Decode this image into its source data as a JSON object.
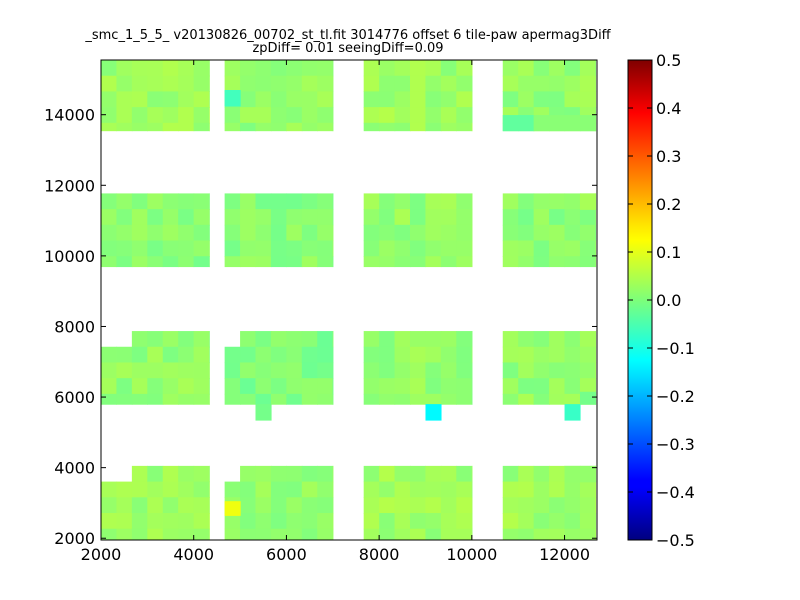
{
  "chart_data": {
    "type": "heatmap",
    "title": "_smc_1_5_5_ v20130826_00702_st_tl.fit 3014776 offset 6 tile-paw apermag3Diff",
    "subtitle": "zpDiff= 0.01 seeingDiff=0.09",
    "xlabel": "",
    "ylabel": "",
    "xlim": [
      2000,
      12700
    ],
    "ylim": [
      1950,
      15550
    ],
    "x_ticks": [
      2000,
      4000,
      6000,
      8000,
      10000,
      12000
    ],
    "y_ticks": [
      2000,
      4000,
      6000,
      8000,
      10000,
      12000,
      14000
    ],
    "colorbar": {
      "colormap": "jet",
      "range": [
        -0.5,
        0.5
      ],
      "ticks": [
        -0.5,
        -0.4,
        -0.3,
        -0.2,
        -0.1,
        0.0,
        0.1,
        0.2,
        0.3,
        0.4,
        0.5
      ]
    },
    "cell_size": [
      333,
      445
    ],
    "patches": [
      {
        "x0": 2000,
        "x1": 4333,
        "y0": 13550,
        "y1": 15550,
        "base": 0.03
      },
      {
        "x0": 4667,
        "x1": 7000,
        "y0": 13550,
        "y1": 15550,
        "base": 0.02
      },
      {
        "x0": 7667,
        "x1": 10000,
        "y0": 13550,
        "y1": 15550,
        "base": 0.03
      },
      {
        "x0": 10667,
        "x1": 12667,
        "y0": 13550,
        "y1": 15550,
        "base": 0.02
      },
      {
        "x0": 2000,
        "x1": 4333,
        "y0": 9700,
        "y1": 11770,
        "base": 0.01
      },
      {
        "x0": 4667,
        "x1": 7000,
        "y0": 9700,
        "y1": 11770,
        "base": 0.01
      },
      {
        "x0": 7667,
        "x1": 10000,
        "y0": 9700,
        "y1": 11770,
        "base": 0.02
      },
      {
        "x0": 10667,
        "x1": 12667,
        "y0": 9700,
        "y1": 11770,
        "base": 0.01
      },
      {
        "x0": 2000,
        "x1": 4333,
        "y0": 5800,
        "y1": 7870,
        "base": 0.02
      },
      {
        "x0": 4667,
        "x1": 7000,
        "y0": 5800,
        "y1": 7870,
        "base": 0.0
      },
      {
        "x0": 7667,
        "x1": 10000,
        "y0": 5800,
        "y1": 7870,
        "base": 0.02
      },
      {
        "x0": 10667,
        "x1": 12667,
        "y0": 5800,
        "y1": 7870,
        "base": 0.02
      },
      {
        "x0": 2000,
        "x1": 4333,
        "y0": 1950,
        "y1": 4050,
        "base": 0.03
      },
      {
        "x0": 4667,
        "x1": 7000,
        "y0": 1950,
        "y1": 4050,
        "base": 0.02
      },
      {
        "x0": 7667,
        "x1": 10000,
        "y0": 1950,
        "y1": 4050,
        "base": 0.03
      },
      {
        "x0": 10667,
        "x1": 12667,
        "y0": 1950,
        "y1": 4050,
        "base": 0.03
      }
    ],
    "missing_cells": [
      [
        4000,
        15550
      ],
      [
        4333,
        15550
      ],
      [
        4000,
        15100
      ],
      [
        4333,
        15100
      ],
      [
        4333,
        14650
      ],
      [
        4333,
        14200
      ],
      [
        4667,
        15100
      ],
      [
        4667,
        14650
      ],
      [
        4667,
        14200
      ],
      [
        12333,
        15550
      ],
      [
        12333,
        15100
      ],
      [
        12333,
        14650
      ],
      [
        12333,
        14200
      ],
      [
        4000,
        11770
      ],
      [
        4333,
        11770
      ],
      [
        4000,
        11320
      ],
      [
        4333,
        11320
      ],
      [
        4333,
        10870
      ],
      [
        4667,
        10420
      ],
      [
        4667,
        9970
      ],
      [
        9333,
        11770
      ],
      [
        9667,
        11770
      ],
      [
        9667,
        11320
      ],
      [
        12000,
        11320
      ],
      [
        12000,
        10870
      ],
      [
        12000,
        10420
      ],
      [
        12000,
        9970
      ],
      [
        2000,
        7870
      ],
      [
        2333,
        7870
      ],
      [
        4000,
        7870
      ],
      [
        4333,
        7870
      ],
      [
        4333,
        7420
      ],
      [
        4333,
        6970
      ],
      [
        4667,
        7870
      ],
      [
        4667,
        7420
      ],
      [
        4667,
        6970
      ],
      [
        6000,
        6400
      ],
      [
        6333,
        6400
      ],
      [
        6667,
        6400
      ],
      [
        7000,
        6400
      ],
      [
        4333,
        6400
      ],
      [
        4333,
        6000
      ],
      [
        8333,
        7420
      ],
      [
        8667,
        7420
      ],
      [
        8333,
        6970
      ],
      [
        12000,
        7420
      ],
      [
        12000,
        6970
      ],
      [
        12000,
        6400
      ],
      [
        11667,
        6400
      ],
      [
        11000,
        6400
      ],
      [
        2000,
        4050
      ],
      [
        2333,
        4050
      ],
      [
        4000,
        4050
      ],
      [
        4333,
        3600
      ],
      [
        4000,
        3600
      ],
      [
        4333,
        3150
      ],
      [
        4667,
        3600
      ],
      [
        4667,
        3150
      ],
      [
        4667,
        4050
      ],
      [
        6667,
        2250
      ],
      [
        9667,
        4050
      ],
      [
        9667,
        3600
      ],
      [
        10000,
        4050
      ],
      [
        11667,
        4050
      ],
      [
        11667,
        3600
      ],
      [
        12000,
        3150
      ],
      [
        12000,
        2700
      ],
      [
        12000,
        2250
      ],
      [
        12333,
        3150
      ],
      [
        12333,
        2700
      ],
      [
        12333,
        2250
      ]
    ],
    "extra_cells": [
      {
        "x0": 4667,
        "x1": 5000,
        "y0": 14250,
        "y1": 14700,
        "value": -0.06
      },
      {
        "x0": 10667,
        "x1": 11333,
        "y0": 13550,
        "y1": 13990,
        "value": -0.03
      },
      {
        "x0": 11333,
        "x1": 12667,
        "y0": 13550,
        "y1": 13990,
        "value": 0.01
      },
      {
        "x0": 12333,
        "x1": 12667,
        "y0": 11320,
        "y1": 11770,
        "value": 0.04
      },
      {
        "x0": 5333,
        "x1": 5667,
        "y0": 5350,
        "y1": 5800,
        "value": -0.01
      },
      {
        "x0": 9000,
        "x1": 9333,
        "y0": 5350,
        "y1": 5800,
        "value": -0.13
      },
      {
        "x0": 12000,
        "x1": 12333,
        "y0": 5350,
        "y1": 5800,
        "value": -0.07
      },
      {
        "x0": 12333,
        "x1": 12667,
        "y0": 5800,
        "y1": 6150,
        "value": -0.01
      },
      {
        "x0": 4667,
        "x1": 5000,
        "y0": 2650,
        "y1": 3050,
        "value": 0.11
      },
      {
        "x0": 12000,
        "x1": 12667,
        "y0": 3600,
        "y1": 4050,
        "value": 0.02
      }
    ],
    "highlight_cells": [
      {
        "x": 3667,
        "y": 9970,
        "value": -0.07
      },
      {
        "x": 5333,
        "y": 10420,
        "value": -0.06
      },
      {
        "x": 9667,
        "y": 15100,
        "value": -0.05
      },
      {
        "x": 9333,
        "y": 10420,
        "value": 0.06
      },
      {
        "x": 9667,
        "y": 10420,
        "value": 0.05
      },
      {
        "x": 9333,
        "y": 13550,
        "value": 0.05
      },
      {
        "x": 2333,
        "y": 7420,
        "value": -0.06
      },
      {
        "x": 5333,
        "y": 7420,
        "value": -0.05
      },
      {
        "x": 8333,
        "y": 7420,
        "value": -0.05
      },
      {
        "x": 7667,
        "y": 6400,
        "value": -0.04
      },
      {
        "x": 11000,
        "y": 6400,
        "value": 0.06
      },
      {
        "x": 10667,
        "y": 6400,
        "value": -0.04
      },
      {
        "x": 5000,
        "y": 2250,
        "value": 0.07
      },
      {
        "x": 2667,
        "y": 3600,
        "value": -0.04
      }
    ]
  }
}
